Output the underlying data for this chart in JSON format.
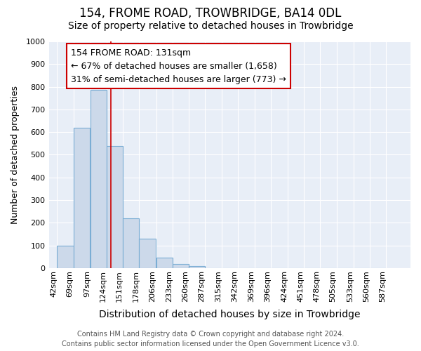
{
  "title": "154, FROME ROAD, TROWBRIDGE, BA14 0DL",
  "subtitle": "Size of property relative to detached houses in Trowbridge",
  "xlabel": "Distribution of detached houses by size in Trowbridge",
  "ylabel": "Number of detached properties",
  "bar_edges": [
    42,
    69,
    97,
    124,
    151,
    178,
    206,
    233,
    260,
    287,
    315,
    342,
    369,
    396,
    424,
    451,
    478,
    505,
    533,
    560,
    587
  ],
  "bar_heights": [
    100,
    620,
    785,
    540,
    220,
    130,
    45,
    18,
    10,
    0,
    0,
    0,
    0,
    0,
    0,
    0,
    0,
    0,
    0,
    0
  ],
  "bar_color": "#ccd9ea",
  "bar_edge_color": "#7aadd4",
  "property_size": 131,
  "vline_color": "#cc0000",
  "annotation_text": "154 FROME ROAD: 131sqm\n← 67% of detached houses are smaller (1,658)\n31% of semi-detached houses are larger (773) →",
  "annotation_box_color": "#ffffff",
  "annotation_box_edge_color": "#cc0000",
  "ylim": [
    0,
    1000
  ],
  "yticks": [
    0,
    100,
    200,
    300,
    400,
    500,
    600,
    700,
    800,
    900,
    1000
  ],
  "background_color": "#e8eef7",
  "grid_color": "#ffffff",
  "fig_background": "#ffffff",
  "footer_line1": "Contains HM Land Registry data © Crown copyright and database right 2024.",
  "footer_line2": "Contains public sector information licensed under the Open Government Licence v3.0.",
  "title_fontsize": 12,
  "subtitle_fontsize": 10,
  "tick_label_fontsize": 8,
  "ylabel_fontsize": 9,
  "xlabel_fontsize": 10,
  "annotation_fontsize": 9,
  "footer_fontsize": 7
}
